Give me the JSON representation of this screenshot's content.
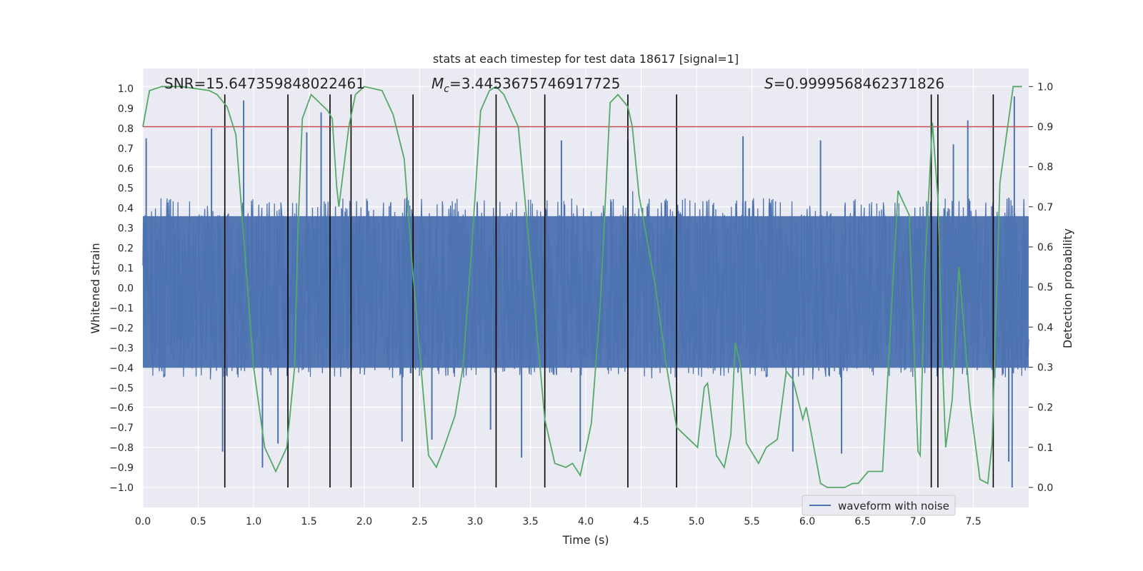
{
  "chart_data": {
    "type": "line",
    "title": "stats at each timestep for test data 18617 [signal=1]",
    "xlabel": "Time (s)",
    "ylabel_left": "Whitened strain",
    "ylabel_right": "Detection probability",
    "xlim": [
      0.0,
      8.0
    ],
    "ylim_left": [
      -1.1,
      1.1
    ],
    "ylim_right": [
      -0.05,
      1.045
    ],
    "x_ticks": [
      "0.0",
      "0.5",
      "1.0",
      "1.5",
      "2.0",
      "2.5",
      "3.0",
      "3.5",
      "4.0",
      "4.5",
      "5.0",
      "5.5",
      "6.0",
      "6.5",
      "7.0",
      "7.5"
    ],
    "y_left_ticks": [
      "1.0",
      "0.9",
      "0.8",
      "0.7",
      "0.6",
      "0.5",
      "0.4",
      "0.3",
      "0.2",
      "0.1",
      "0.0",
      "−0.1",
      "−0.2",
      "−0.3",
      "−0.4",
      "−0.5",
      "−0.6",
      "−0.7",
      "−0.8",
      "−0.9",
      "−1.0"
    ],
    "y_right_ticks": [
      "1.0",
      "0.9",
      "0.8",
      "0.7",
      "0.6",
      "0.5",
      "0.4",
      "0.3",
      "0.2",
      "0.1",
      "0.0"
    ],
    "annotations": {
      "snr": "SNR=15.647359848022461",
      "mc_symbol": "M",
      "mc_sub": "c",
      "mc_value": "=3.4453675746917725",
      "s_symbol": "S",
      "s_value": "=0.9999568462371826"
    },
    "legend": {
      "position": "lower-right",
      "entries": [
        "waveform with noise"
      ]
    },
    "threshold": {
      "value": 0.9,
      "axis": "right",
      "color": "#c44e52"
    },
    "events": [
      0.74,
      1.31,
      1.69,
      1.88,
      2.44,
      3.19,
      3.63,
      4.38,
      4.82,
      7.12,
      7.18,
      7.68
    ],
    "series": [
      {
        "name": "waveform with noise",
        "color": "#4c72b0",
        "kind": "noise",
        "n_samples": 2048,
        "core_amplitude": 0.45,
        "spikes": [
          {
            "x": 0.03,
            "y": 0.75
          },
          {
            "x": 0.62,
            "y": 0.8
          },
          {
            "x": 0.72,
            "y": -0.82
          },
          {
            "x": 0.91,
            "y": 0.94
          },
          {
            "x": 1.08,
            "y": -0.9
          },
          {
            "x": 1.22,
            "y": -0.78
          },
          {
            "x": 1.48,
            "y": 0.78
          },
          {
            "x": 1.61,
            "y": 0.88
          },
          {
            "x": 2.34,
            "y": -0.77
          },
          {
            "x": 2.61,
            "y": -0.76
          },
          {
            "x": 3.14,
            "y": -0.71
          },
          {
            "x": 3.42,
            "y": -0.85
          },
          {
            "x": 3.78,
            "y": 0.74
          },
          {
            "x": 3.95,
            "y": -0.82
          },
          {
            "x": 4.38,
            "y": 0.74
          },
          {
            "x": 5.42,
            "y": 0.76
          },
          {
            "x": 5.87,
            "y": -0.82
          },
          {
            "x": 6.12,
            "y": 0.74
          },
          {
            "x": 6.31,
            "y": -0.83
          },
          {
            "x": 7.32,
            "y": 0.72
          },
          {
            "x": 7.45,
            "y": 0.84
          },
          {
            "x": 7.82,
            "y": -0.87
          },
          {
            "x": 7.85,
            "y": -1.0
          },
          {
            "x": 7.87,
            "y": 0.96
          }
        ]
      },
      {
        "name": "detection probability",
        "color": "#55a868",
        "axis": "right",
        "x": [
          0.0,
          0.06,
          0.17,
          0.35,
          0.6,
          0.67,
          0.76,
          0.84,
          1.0,
          1.1,
          1.2,
          1.3,
          1.37,
          1.4,
          1.44,
          1.52,
          1.67,
          1.71,
          1.75,
          1.77,
          1.86,
          1.92,
          2.0,
          2.16,
          2.26,
          2.36,
          2.44,
          2.58,
          2.65,
          2.72,
          2.82,
          2.89,
          2.97,
          3.05,
          3.13,
          3.19,
          3.26,
          3.39,
          3.53,
          3.63,
          3.72,
          3.82,
          3.88,
          3.95,
          4.05,
          4.13,
          4.22,
          4.29,
          4.38,
          4.42,
          4.48,
          4.63,
          4.73,
          4.82,
          5.01,
          5.07,
          5.1,
          5.18,
          5.25,
          5.31,
          5.35,
          5.4,
          5.45,
          5.56,
          5.63,
          5.73,
          5.81,
          5.87,
          5.96,
          5.99,
          6.02,
          6.08,
          6.12,
          6.18,
          6.28,
          6.34,
          6.41,
          6.46,
          6.55,
          6.68,
          6.82,
          6.92,
          7.0,
          7.02,
          7.06,
          7.13,
          7.18,
          7.22,
          7.25,
          7.31,
          7.37,
          7.43,
          7.47,
          7.56,
          7.63,
          7.67,
          7.74,
          7.86,
          7.94
        ],
        "y": [
          0.9,
          0.99,
          1.0,
          1.0,
          0.99,
          0.98,
          0.95,
          0.88,
          0.3,
          0.1,
          0.04,
          0.1,
          0.3,
          0.64,
          0.92,
          0.98,
          0.94,
          0.92,
          0.75,
          0.7,
          0.9,
          0.98,
          1.0,
          0.99,
          0.93,
          0.82,
          0.53,
          0.08,
          0.05,
          0.1,
          0.18,
          0.3,
          0.6,
          0.94,
          0.99,
          1.0,
          0.98,
          0.9,
          0.48,
          0.17,
          0.06,
          0.05,
          0.06,
          0.03,
          0.16,
          0.45,
          0.96,
          0.98,
          0.95,
          0.9,
          0.73,
          0.5,
          0.3,
          0.15,
          0.1,
          0.25,
          0.26,
          0.08,
          0.05,
          0.13,
          0.36,
          0.3,
          0.11,
          0.06,
          0.1,
          0.12,
          0.29,
          0.27,
          0.17,
          0.2,
          0.16,
          0.07,
          0.01,
          0.0,
          0.0,
          0.0,
          0.01,
          0.01,
          0.04,
          0.04,
          0.74,
          0.68,
          0.09,
          0.08,
          0.53,
          0.91,
          0.72,
          0.32,
          0.1,
          0.22,
          0.55,
          0.35,
          0.21,
          0.02,
          0.01,
          0.11,
          0.76,
          1.0,
          1.0
        ]
      }
    ]
  }
}
